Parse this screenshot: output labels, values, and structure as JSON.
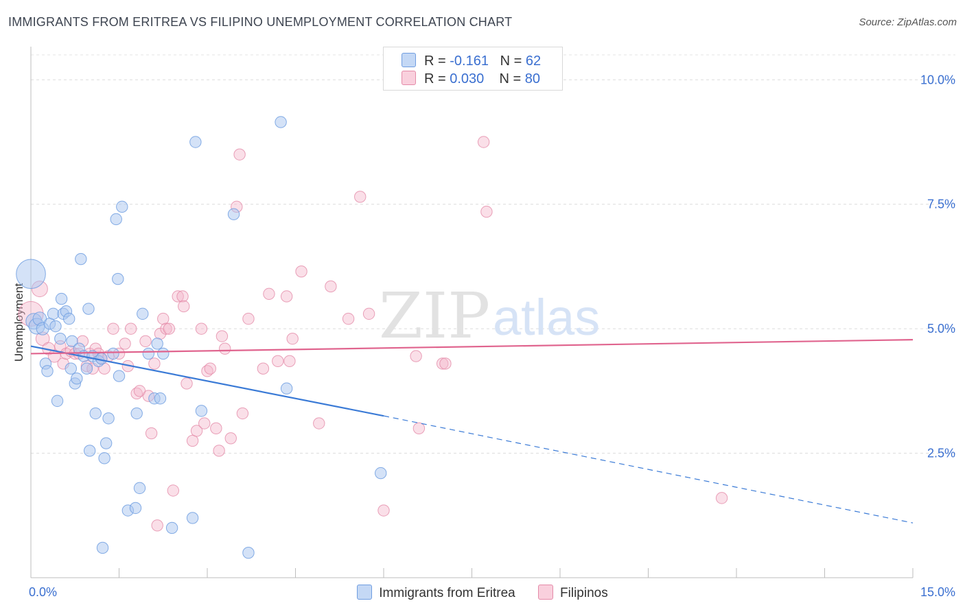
{
  "title": "IMMIGRANTS FROM ERITREA VS FILIPINO UNEMPLOYMENT CORRELATION CHART",
  "source": "Source: ZipAtlas.com",
  "watermark": {
    "zip": "ZIP",
    "atlas": "atlas"
  },
  "colors": {
    "blue": "#a9c6ef",
    "blue_stroke": "#6f9de0",
    "blue_line": "#3a7ad6",
    "pink": "#f5b8cb",
    "pink_stroke": "#e48aa8",
    "pink_line": "#e0648e",
    "axis_text": "#3a6fd0"
  },
  "legend": {
    "rows": [
      {
        "r_label": "R = ",
        "r_value": "-0.161",
        "n_label": "N = ",
        "n_value": "62",
        "color": "#a9c6ef"
      },
      {
        "r_label": "R = ",
        "r_value": "0.030",
        "n_label": "N = ",
        "n_value": "80",
        "color": "#f5b8cb"
      }
    ]
  },
  "bottom_legend": [
    {
      "label": "Immigrants from Eritrea",
      "color": "#a9c6ef"
    },
    {
      "label": "Filipinos",
      "color": "#f5b8cb"
    }
  ],
  "chart_data": {
    "type": "scatter",
    "title": "IMMIGRANTS FROM ERITREA VS FILIPINO UNEMPLOYMENT CORRELATION CHART",
    "ylabel": "Unemployment",
    "xlabel": "",
    "xlim": [
      0,
      15
    ],
    "ylim": [
      0,
      10.5
    ],
    "x_tick_labels": [
      "0.0%",
      "15.0%"
    ],
    "y_ticks": [
      2.5,
      5.0,
      7.5,
      10.0
    ],
    "y_tick_labels": [
      "2.5%",
      "5.0%",
      "7.5%",
      "10.0%"
    ],
    "grid": true,
    "legend_position": "top-center",
    "series": [
      {
        "name": "Immigrants from Eritrea",
        "color": "#a9c6ef",
        "trend": {
          "x": [
            0,
            6
          ],
          "y": [
            4.65,
            3.25
          ],
          "dashed_extension": {
            "x": [
              6,
              15
            ],
            "y": [
              3.25,
              1.1
            ]
          }
        },
        "points": [
          [
            0.0,
            6.1,
            26
          ],
          [
            0.05,
            5.15,
            14
          ],
          [
            0.1,
            5.05,
            14
          ],
          [
            0.15,
            5.2,
            12
          ],
          [
            0.2,
            5.0,
            11
          ],
          [
            0.25,
            4.3,
            10
          ],
          [
            0.28,
            4.15,
            10
          ],
          [
            0.32,
            5.1,
            10
          ],
          [
            0.38,
            5.3,
            10
          ],
          [
            0.42,
            5.05,
            10
          ],
          [
            0.45,
            3.55,
            10
          ],
          [
            0.5,
            4.8,
            10
          ],
          [
            0.52,
            5.6,
            10
          ],
          [
            0.55,
            5.3,
            10
          ],
          [
            0.6,
            5.35,
            10
          ],
          [
            0.65,
            5.2,
            10
          ],
          [
            0.68,
            4.2,
            10
          ],
          [
            0.7,
            4.75,
            10
          ],
          [
            0.75,
            3.9,
            10
          ],
          [
            0.78,
            4.0,
            10
          ],
          [
            0.82,
            4.6,
            10
          ],
          [
            0.85,
            6.4,
            10
          ],
          [
            0.9,
            4.45,
            10
          ],
          [
            0.95,
            4.2,
            10
          ],
          [
            0.98,
            5.4,
            10
          ],
          [
            1.0,
            2.55,
            10
          ],
          [
            1.05,
            4.45,
            10
          ],
          [
            1.1,
            3.3,
            10
          ],
          [
            1.15,
            4.35,
            10
          ],
          [
            1.2,
            4.4,
            10
          ],
          [
            1.22,
            0.6,
            10
          ],
          [
            1.25,
            2.4,
            10
          ],
          [
            1.28,
            2.7,
            10
          ],
          [
            1.32,
            3.2,
            10
          ],
          [
            1.4,
            4.5,
            10
          ],
          [
            1.45,
            7.2,
            10
          ],
          [
            1.48,
            6.0,
            10
          ],
          [
            1.5,
            4.05,
            10
          ],
          [
            1.55,
            7.45,
            10
          ],
          [
            1.65,
            1.35,
            10
          ],
          [
            1.78,
            1.4,
            10
          ],
          [
            1.8,
            3.3,
            10
          ],
          [
            1.85,
            1.8,
            10
          ],
          [
            1.9,
            5.3,
            10
          ],
          [
            2.0,
            4.5,
            10
          ],
          [
            2.1,
            3.6,
            10
          ],
          [
            2.15,
            4.7,
            10
          ],
          [
            2.2,
            3.6,
            10
          ],
          [
            2.25,
            4.5,
            10
          ],
          [
            2.4,
            1.0,
            10
          ],
          [
            2.75,
            1.2,
            10
          ],
          [
            2.8,
            8.75,
            10
          ],
          [
            2.9,
            3.35,
            10
          ],
          [
            3.45,
            7.3,
            10
          ],
          [
            3.7,
            0.5,
            10
          ],
          [
            4.25,
            9.15,
            10
          ],
          [
            4.35,
            3.8,
            10
          ],
          [
            5.95,
            2.1,
            10
          ]
        ]
      },
      {
        "name": "Filipinos",
        "color": "#f5b8cb",
        "trend": {
          "x": [
            0,
            15
          ],
          "y": [
            4.5,
            4.78
          ]
        },
        "points": [
          [
            0.0,
            5.3,
            22
          ],
          [
            0.15,
            5.8,
            14
          ],
          [
            0.2,
            4.8,
            12
          ],
          [
            0.3,
            4.6,
            11
          ],
          [
            0.4,
            4.45,
            11
          ],
          [
            0.5,
            4.65,
            10
          ],
          [
            0.55,
            4.3,
            10
          ],
          [
            0.6,
            4.5,
            10
          ],
          [
            0.68,
            4.55,
            10
          ],
          [
            0.75,
            4.5,
            10
          ],
          [
            0.82,
            4.5,
            10
          ],
          [
            0.88,
            4.75,
            10
          ],
          [
            0.95,
            4.25,
            10
          ],
          [
            1.0,
            4.5,
            10
          ],
          [
            1.05,
            4.2,
            10
          ],
          [
            1.1,
            4.6,
            10
          ],
          [
            1.15,
            4.5,
            10
          ],
          [
            1.2,
            4.4,
            10
          ],
          [
            1.25,
            4.2,
            10
          ],
          [
            1.32,
            4.45,
            10
          ],
          [
            1.4,
            5.0,
            10
          ],
          [
            1.5,
            4.5,
            10
          ],
          [
            1.6,
            4.7,
            10
          ],
          [
            1.65,
            4.25,
            10
          ],
          [
            1.7,
            5.0,
            10
          ],
          [
            1.8,
            3.7,
            10
          ],
          [
            1.85,
            3.75,
            10
          ],
          [
            1.95,
            4.75,
            10
          ],
          [
            2.0,
            3.65,
            10
          ],
          [
            2.05,
            2.9,
            10
          ],
          [
            2.1,
            4.3,
            10
          ],
          [
            2.15,
            1.05,
            10
          ],
          [
            2.2,
            4.9,
            10
          ],
          [
            2.25,
            5.2,
            10
          ],
          [
            2.3,
            5.0,
            10
          ],
          [
            2.35,
            5.0,
            10
          ],
          [
            2.42,
            1.75,
            10
          ],
          [
            2.5,
            5.65,
            10
          ],
          [
            2.58,
            5.65,
            10
          ],
          [
            2.6,
            5.45,
            10
          ],
          [
            2.65,
            3.9,
            10
          ],
          [
            2.75,
            2.75,
            10
          ],
          [
            2.82,
            2.95,
            10
          ],
          [
            2.9,
            5.0,
            10
          ],
          [
            2.95,
            3.1,
            10
          ],
          [
            3.0,
            4.15,
            10
          ],
          [
            3.05,
            4.2,
            10
          ],
          [
            3.15,
            3.0,
            10
          ],
          [
            3.2,
            2.55,
            10
          ],
          [
            3.25,
            4.85,
            10
          ],
          [
            3.3,
            4.6,
            10
          ],
          [
            3.4,
            2.8,
            10
          ],
          [
            3.5,
            7.45,
            10
          ],
          [
            3.55,
            8.5,
            10
          ],
          [
            3.6,
            3.3,
            10
          ],
          [
            3.7,
            5.2,
            10
          ],
          [
            3.95,
            4.2,
            10
          ],
          [
            4.05,
            5.7,
            10
          ],
          [
            4.2,
            4.35,
            10
          ],
          [
            4.35,
            5.65,
            10
          ],
          [
            4.4,
            4.35,
            10
          ],
          [
            4.45,
            4.8,
            10
          ],
          [
            4.6,
            6.15,
            10
          ],
          [
            4.9,
            3.1,
            10
          ],
          [
            5.1,
            5.85,
            10
          ],
          [
            5.4,
            5.2,
            10
          ],
          [
            5.6,
            7.65,
            10
          ],
          [
            5.75,
            5.3,
            10
          ],
          [
            6.0,
            1.35,
            10
          ],
          [
            6.55,
            4.45,
            10
          ],
          [
            6.6,
            3.0,
            10
          ],
          [
            7.0,
            4.3,
            10
          ],
          [
            7.05,
            4.3,
            10
          ],
          [
            7.7,
            8.75,
            10
          ],
          [
            7.75,
            7.35,
            10
          ],
          [
            11.75,
            1.6,
            10
          ]
        ]
      }
    ]
  }
}
